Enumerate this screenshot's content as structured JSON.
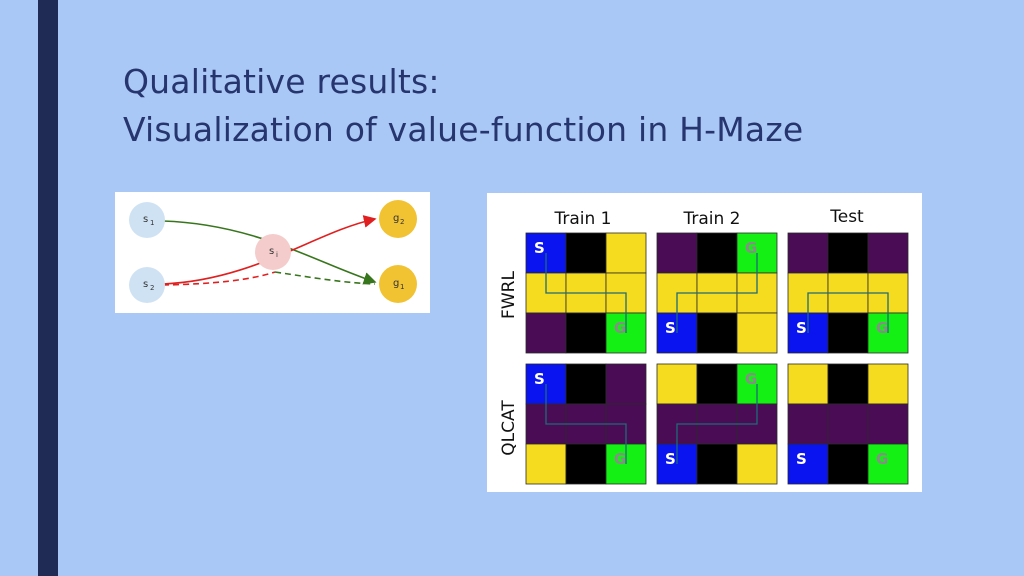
{
  "slide": {
    "title_line_1": "Qualitative results:",
    "title_line_2": "Visualization of value-function in H-Maze"
  },
  "colors": {
    "background": "#aac8f5",
    "accent_bar": "#1f2a55",
    "title_text": "#27356e",
    "maze_yellow": "#f5dc1e",
    "maze_purple": "#4a0c55",
    "maze_black": "#000000",
    "maze_blue": "#0a14f0",
    "maze_green": "#14f014",
    "node_blue": "#cfe2f3",
    "node_pink": "#f4cccc",
    "node_gold": "#f1c232",
    "edge_green": "#38761d",
    "edge_red": "#e02020"
  },
  "diagram": {
    "nodes": [
      {
        "id": "s1",
        "label": "s",
        "sub": "1",
        "color": "node_blue"
      },
      {
        "id": "s2",
        "label": "s",
        "sub": "2",
        "color": "node_blue"
      },
      {
        "id": "si",
        "label": "s",
        "sub": "i",
        "color": "node_pink"
      },
      {
        "id": "g2",
        "label": "g",
        "sub": "2",
        "color": "node_gold"
      },
      {
        "id": "g1",
        "label": "g",
        "sub": "1",
        "color": "node_gold"
      }
    ]
  },
  "maze_figure": {
    "columns": [
      "Train 1",
      "Train 2",
      "Test"
    ],
    "rows": [
      "FWRL",
      "QLCAT"
    ],
    "marker_start": "S",
    "marker_goal": "G",
    "grids": [
      [
        [
          [
            "b",
            "k",
            "y"
          ],
          [
            "y",
            "y",
            "y"
          ],
          [
            "p",
            "k",
            "g"
          ]
        ],
        [
          [
            "p",
            "k",
            "g"
          ],
          [
            "y",
            "y",
            "y"
          ],
          [
            "b",
            "k",
            "y"
          ]
        ],
        [
          [
            "p",
            "k",
            "p"
          ],
          [
            "y",
            "y",
            "y"
          ],
          [
            "b",
            "k",
            "g"
          ]
        ]
      ],
      [
        [
          [
            "b",
            "k",
            "p"
          ],
          [
            "p",
            "p",
            "p"
          ],
          [
            "y",
            "k",
            "g"
          ]
        ],
        [
          [
            "y",
            "k",
            "g"
          ],
          [
            "p",
            "p",
            "p"
          ],
          [
            "b",
            "k",
            "y"
          ]
        ],
        [
          [
            "y",
            "k",
            "y"
          ],
          [
            "p",
            "p",
            "p"
          ],
          [
            "b",
            "k",
            "g"
          ]
        ]
      ]
    ]
  }
}
